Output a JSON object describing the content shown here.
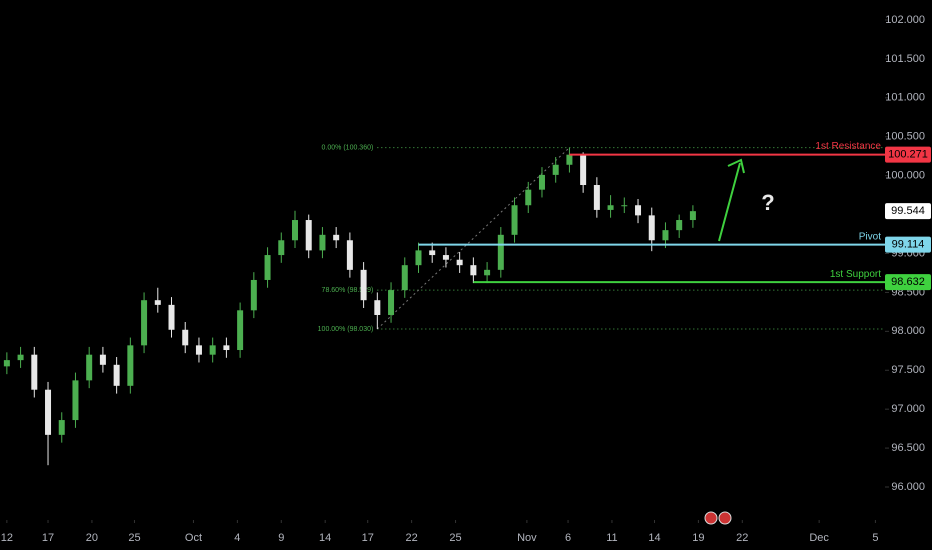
{
  "chart_data": {
    "type": "candlestick",
    "x": [
      0,
      1,
      2,
      3,
      4,
      5,
      6,
      7,
      8,
      9,
      10,
      11,
      12,
      13,
      14,
      15,
      16,
      17,
      18,
      19,
      20,
      21,
      22,
      23,
      24,
      25,
      26,
      27,
      28,
      29,
      30,
      31,
      32,
      33,
      34,
      35,
      36,
      37,
      38,
      39,
      40,
      41,
      42,
      43,
      44,
      45,
      46,
      47,
      48,
      49,
      50
    ],
    "open": [
      97.55,
      97.63,
      97.7,
      97.25,
      96.67,
      96.86,
      97.37,
      97.7,
      97.57,
      97.3,
      97.82,
      98.4,
      98.34,
      98.02,
      97.82,
      97.7,
      97.82,
      97.76,
      98.27,
      98.66,
      98.98,
      99.17,
      99.43,
      99.04,
      99.24,
      99.17,
      98.79,
      98.4,
      98.21,
      98.53,
      98.85,
      99.04,
      98.98,
      98.92,
      98.85,
      98.72,
      98.79,
      99.24,
      99.62,
      99.82,
      100.01,
      100.14,
      100.27,
      99.88,
      99.56,
      99.62,
      99.62,
      99.49,
      99.17,
      99.3,
      99.43
    ],
    "high": [
      97.73,
      97.8,
      97.8,
      97.35,
      96.96,
      97.47,
      97.8,
      97.8,
      97.67,
      97.92,
      98.5,
      98.56,
      98.44,
      98.12,
      97.92,
      97.92,
      97.92,
      98.37,
      98.76,
      99.08,
      99.27,
      99.55,
      99.5,
      99.34,
      99.34,
      99.27,
      98.89,
      98.5,
      98.63,
      98.95,
      99.14,
      99.14,
      99.08,
      99.02,
      98.95,
      98.89,
      99.34,
      99.72,
      99.92,
      100.11,
      100.24,
      100.36,
      100.3,
      99.98,
      99.75,
      99.72,
      99.7,
      99.59,
      99.4,
      99.5,
      99.62
    ],
    "low": [
      97.45,
      97.53,
      97.15,
      96.28,
      96.57,
      96.76,
      97.27,
      97.47,
      97.2,
      97.2,
      97.72,
      98.24,
      97.92,
      97.72,
      97.6,
      97.6,
      97.66,
      97.66,
      98.17,
      98.56,
      98.88,
      99.07,
      98.94,
      98.94,
      99.07,
      98.69,
      98.3,
      98.03,
      98.11,
      98.43,
      98.75,
      98.88,
      98.82,
      98.75,
      98.62,
      98.62,
      98.69,
      99.14,
      99.52,
      99.72,
      99.91,
      100.04,
      99.78,
      99.46,
      99.46,
      99.52,
      99.39,
      99.03,
      99.07,
      99.2,
      99.33
    ],
    "close": [
      97.63,
      97.7,
      97.25,
      96.67,
      96.86,
      97.37,
      97.7,
      97.57,
      97.3,
      97.82,
      98.4,
      98.34,
      98.02,
      97.82,
      97.7,
      97.82,
      97.76,
      98.27,
      98.66,
      98.98,
      99.17,
      99.43,
      99.04,
      99.24,
      99.17,
      98.79,
      98.4,
      98.21,
      98.53,
      98.85,
      99.04,
      98.98,
      98.92,
      98.85,
      98.72,
      98.79,
      99.24,
      99.62,
      99.82,
      100.01,
      100.14,
      100.27,
      99.88,
      99.56,
      99.62,
      99.62,
      99.49,
      99.17,
      99.3,
      99.43,
      99.544
    ],
    "up_color": "#4caf50",
    "down_color": "#e8e8e8",
    "xlim": [
      -0.5,
      64
    ],
    "xticks": [
      {
        "value": 0,
        "label": "12"
      },
      {
        "value": 3,
        "label": "17"
      },
      {
        "value": 6.2,
        "label": "20"
      },
      {
        "value": 9.3,
        "label": "25"
      },
      {
        "value": 13.6,
        "label": "Oct"
      },
      {
        "value": 16.8,
        "label": "4"
      },
      {
        "value": 20,
        "label": "9"
      },
      {
        "value": 23.2,
        "label": "14"
      },
      {
        "value": 26.3,
        "label": "17"
      },
      {
        "value": 29.5,
        "label": "22"
      },
      {
        "value": 32.7,
        "label": "25"
      },
      {
        "value": 37.9,
        "label": "Nov"
      },
      {
        "value": 40.9,
        "label": "6"
      },
      {
        "value": 44.1,
        "label": "11"
      },
      {
        "value": 47.2,
        "label": "14"
      },
      {
        "value": 50.4,
        "label": "19"
      },
      {
        "value": 53.6,
        "label": "22"
      },
      {
        "value": 59.2,
        "label": "Dec"
      },
      {
        "value": 63.3,
        "label": "5"
      }
    ],
    "ylim": [
      95.576,
      102.257
    ],
    "yticks": [
      {
        "value": 96,
        "label": "96.000"
      },
      {
        "value": 96.5,
        "label": "96.500"
      },
      {
        "value": 97,
        "label": "97.000"
      },
      {
        "value": 97.5,
        "label": "97.500"
      },
      {
        "value": 98,
        "label": "98.000"
      },
      {
        "value": 98.5,
        "label": "98.500"
      },
      {
        "value": 99,
        "label": "99.000"
      },
      {
        "value": 99.5,
        "label": "99.500"
      },
      {
        "value": 100,
        "label": "100.000"
      },
      {
        "value": 100.5,
        "label": "100.500"
      },
      {
        "value": 101,
        "label": "101.000"
      },
      {
        "value": 101.5,
        "label": "101.500"
      },
      {
        "value": 102,
        "label": "102.000"
      }
    ],
    "levels": [
      {
        "name": "1st Resistance",
        "value": 100.271,
        "color": "#f23645",
        "x_start": 41
      },
      {
        "name": "Pivot",
        "value": 99.114,
        "color": "#7fd6ea",
        "x_start": 30
      },
      {
        "name": "1st Support",
        "value": 98.632,
        "color": "#3fd13f",
        "x_start": 34
      }
    ],
    "fib_color": "#4caf50",
    "fib": [
      {
        "label": "0.00% (100.360)",
        "value": 100.36,
        "x_start": 27
      },
      {
        "label": "78.60% (98.529)",
        "value": 98.529,
        "x_start": 27
      },
      {
        "label": "100.00% (98.030)",
        "value": 98.03,
        "x_start": 27
      }
    ],
    "annotation": "?"
  }
}
